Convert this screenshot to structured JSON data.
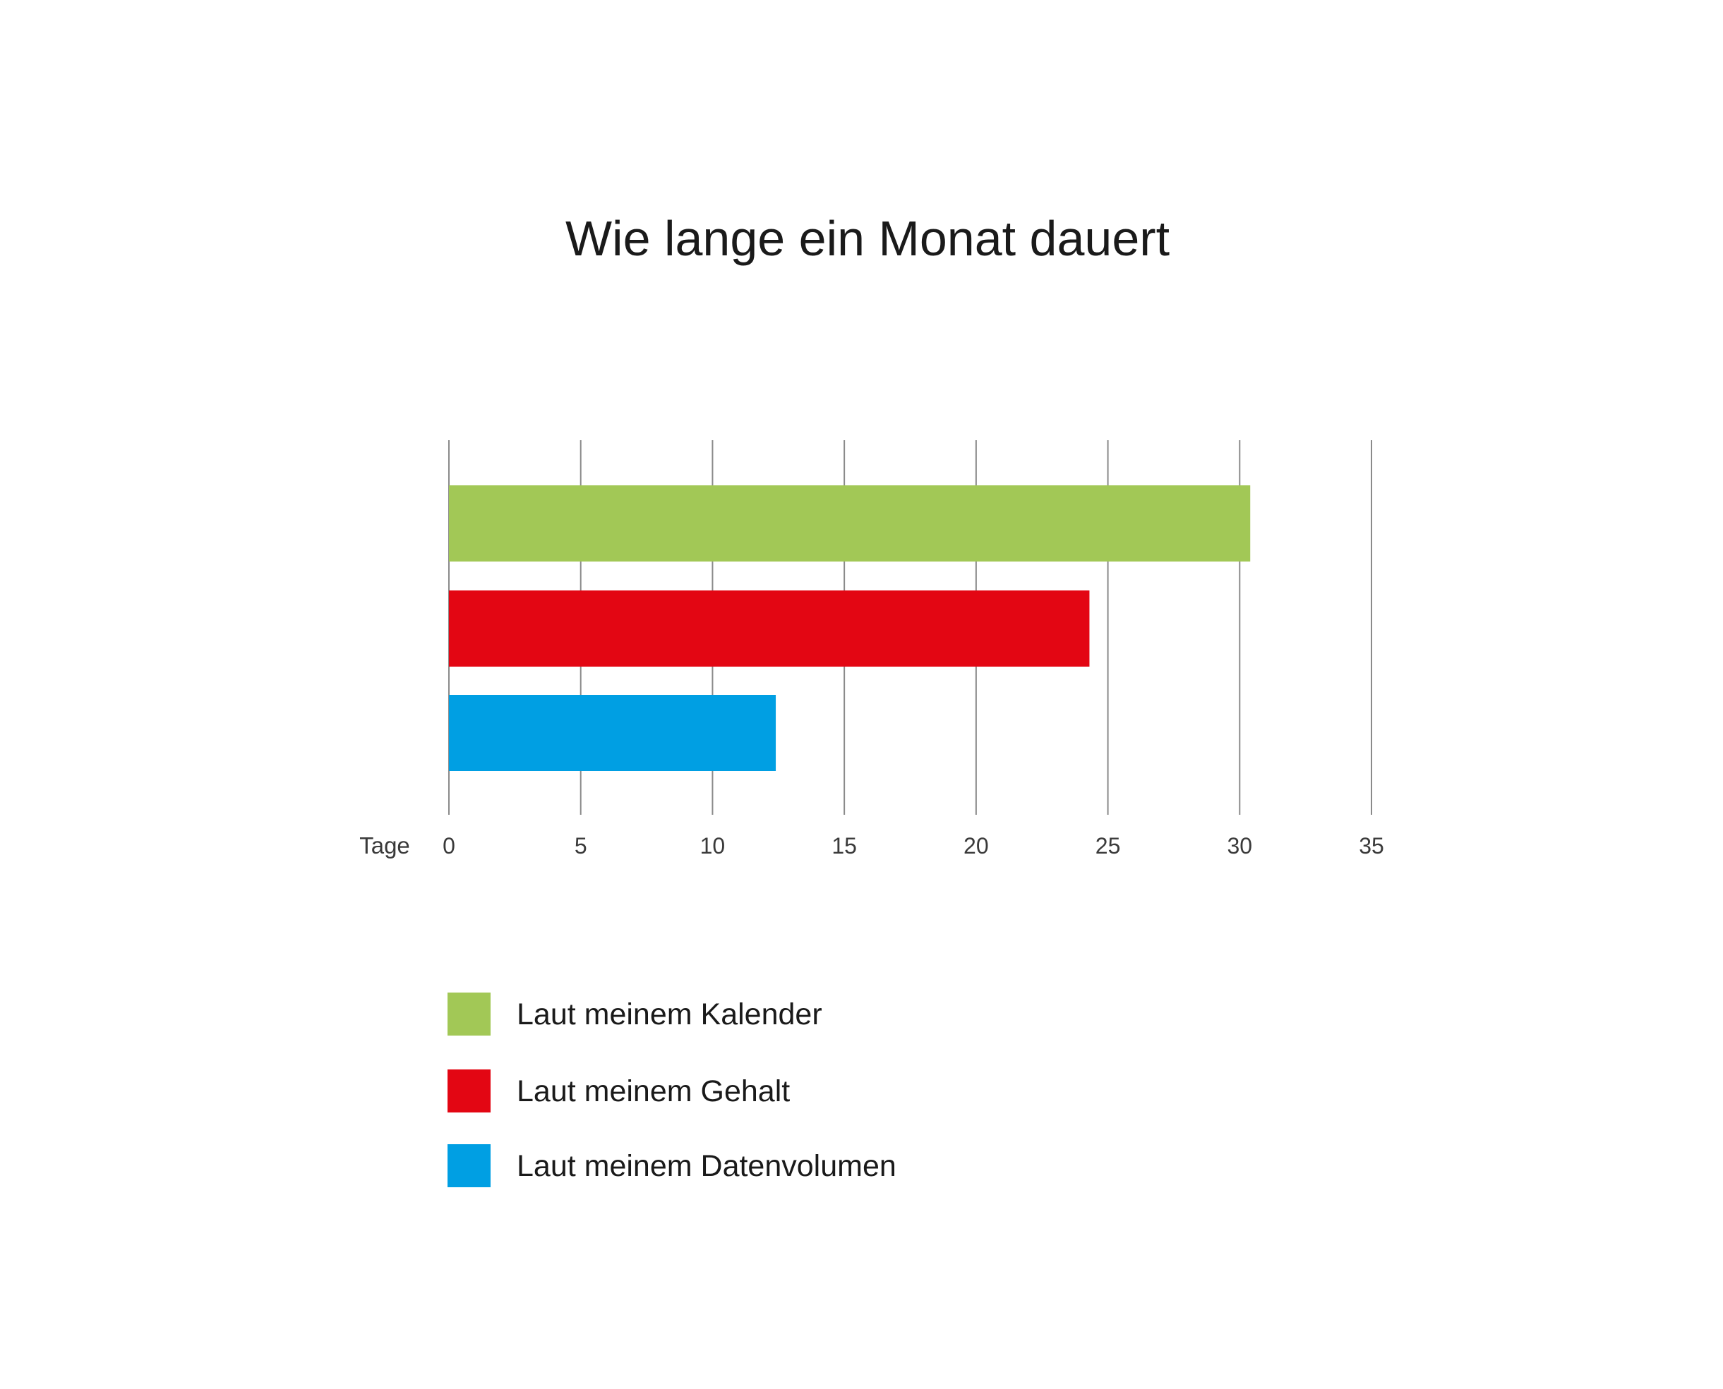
{
  "chart_data": {
    "type": "bar",
    "orientation": "horizontal",
    "title": "Wie lange ein Monat dauert",
    "xlabel": "Tage",
    "ylabel": "",
    "xlim": [
      0,
      35
    ],
    "xticks": [
      0,
      5,
      10,
      15,
      20,
      25,
      30,
      35
    ],
    "xtick_labels": [
      "0",
      "5",
      "10",
      "15",
      "20",
      "25",
      "30",
      "35"
    ],
    "grid": "vertical",
    "legend_position": "bottom-left",
    "series": [
      {
        "name": "Laut meinem Kalender",
        "value": 30.4,
        "color": "#a2c856"
      },
      {
        "name": "Laut meinem Gehalt",
        "value": 24.3,
        "color": "#e30613"
      },
      {
        "name": "Laut meinem Datenvolumen",
        "value": 12.4,
        "color": "#009fe3"
      }
    ]
  }
}
